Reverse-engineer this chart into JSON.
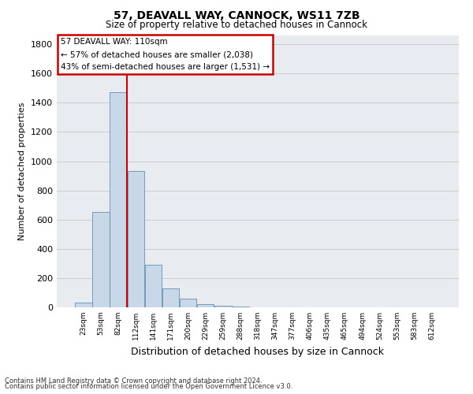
{
  "title": "57, DEAVALL WAY, CANNOCK, WS11 7ZB",
  "subtitle": "Size of property relative to detached houses in Cannock",
  "xlabel": "Distribution of detached houses by size in Cannock",
  "ylabel": "Number of detached properties",
  "footnote1": "Contains HM Land Registry data © Crown copyright and database right 2024.",
  "footnote2": "Contains public sector information licensed under the Open Government Licence v3.0.",
  "bar_labels": [
    "23sqm",
    "53sqm",
    "82sqm",
    "112sqm",
    "141sqm",
    "171sqm",
    "200sqm",
    "229sqm",
    "259sqm",
    "288sqm",
    "318sqm",
    "347sqm",
    "377sqm",
    "406sqm",
    "435sqm",
    "465sqm",
    "494sqm",
    "524sqm",
    "553sqm",
    "583sqm",
    "612sqm"
  ],
  "bar_values": [
    35,
    650,
    1470,
    935,
    290,
    128,
    62,
    22,
    10,
    3,
    1,
    0,
    0,
    0,
    0,
    0,
    0,
    0,
    0,
    0,
    0
  ],
  "bar_color": "#c8d8e8",
  "bar_edge_color": "#6090b0",
  "vline_color": "#cc0000",
  "ylim": [
    0,
    1860
  ],
  "yticks": [
    0,
    200,
    400,
    600,
    800,
    1000,
    1200,
    1400,
    1600,
    1800
  ],
  "annotation_line1": "57 DEAVALL WAY: 110sqm",
  "annotation_line2": "← 57% of detached houses are smaller (2,038)",
  "annotation_line3": "43% of semi-detached houses are larger (1,531) →",
  "annotation_box_color": "#cc0000",
  "grid_color": "#cccccc",
  "fig_bg_color": "#ffffff",
  "plot_bg_color": "#e8ecf0"
}
